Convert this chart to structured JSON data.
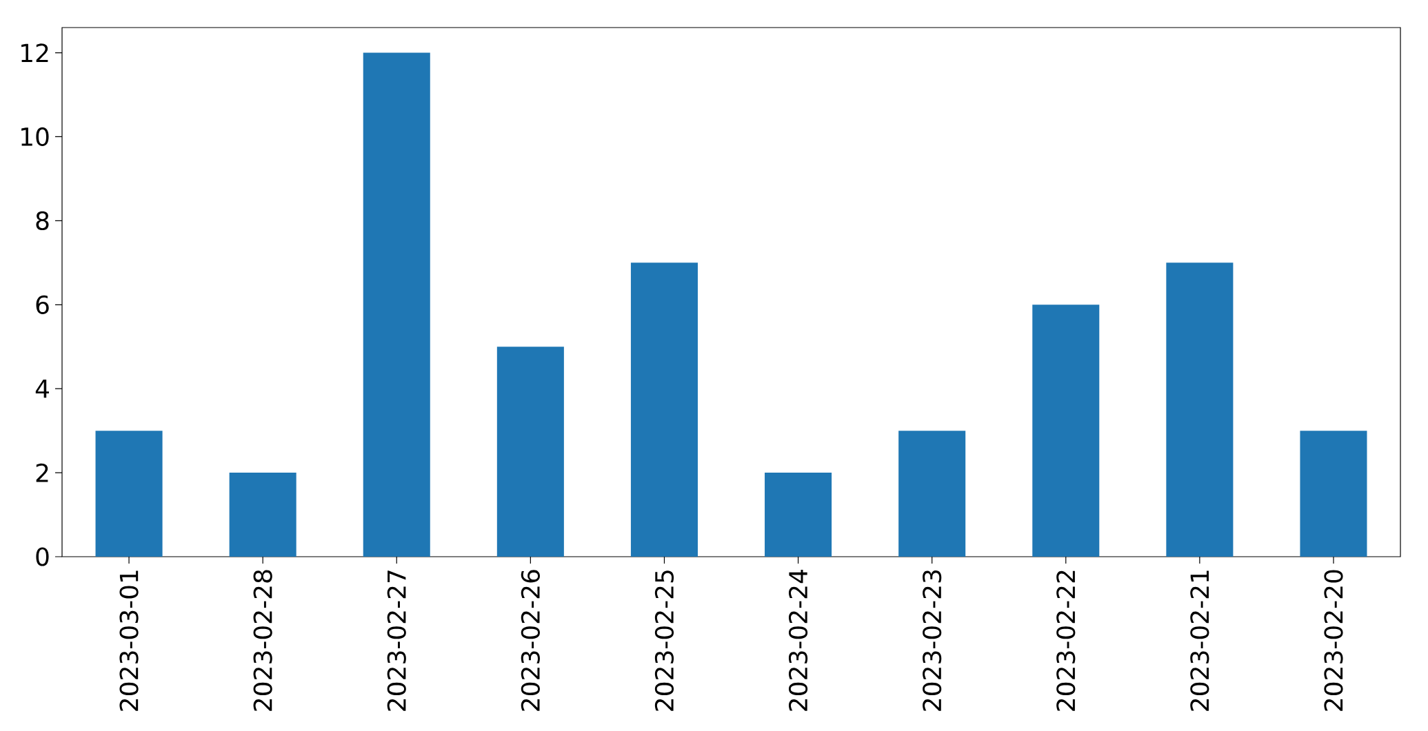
{
  "chart_data": {
    "type": "bar",
    "categories": [
      "2023-03-01",
      "2023-02-28",
      "2023-02-27",
      "2023-02-26",
      "2023-02-25",
      "2023-02-24",
      "2023-02-23",
      "2023-02-22",
      "2023-02-21",
      "2023-02-20"
    ],
    "values": [
      3,
      2,
      12,
      5,
      7,
      2,
      3,
      6,
      7,
      3
    ],
    "color": "#1f77b4",
    "ylim": [
      0,
      12.6
    ],
    "yticks": [
      0,
      2,
      4,
      6,
      8,
      10,
      12
    ]
  }
}
